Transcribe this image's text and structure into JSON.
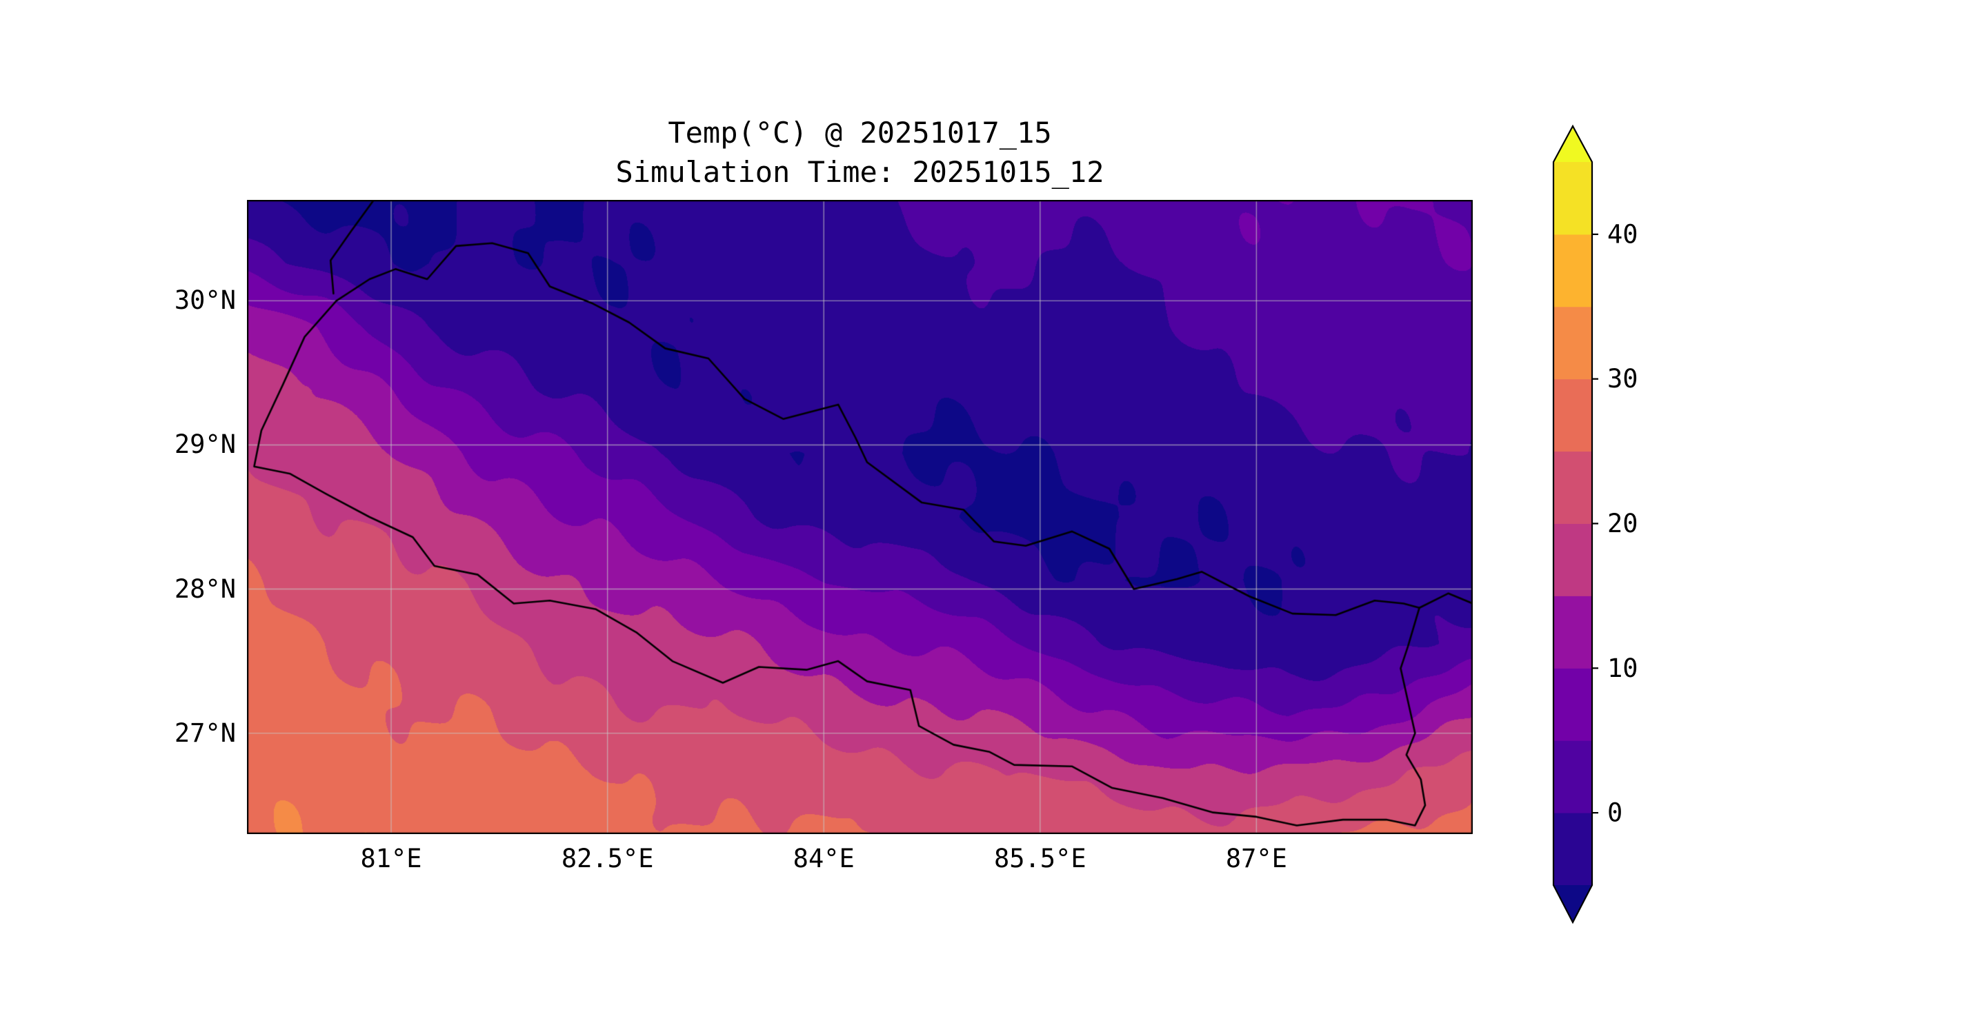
{
  "figure": {
    "title_line1": "Temp(°C) @ 20251017_15",
    "title_line2": "Simulation Time: 20251015_12"
  },
  "axes": {
    "x_ticks": [
      {
        "value": 81,
        "label": "81°E"
      },
      {
        "value": 82.5,
        "label": "82.5°E"
      },
      {
        "value": 84,
        "label": "84°E"
      },
      {
        "value": 85.5,
        "label": "85.5°E"
      },
      {
        "value": 87,
        "label": "87°E"
      }
    ],
    "y_ticks": [
      {
        "value": 30,
        "label": "30°N"
      },
      {
        "value": 29,
        "label": "29°N"
      },
      {
        "value": 28,
        "label": "28°N"
      },
      {
        "value": 27,
        "label": "27°N"
      }
    ],
    "gridline_color": "#c8c8c8",
    "frame_color": "#000000"
  },
  "colorbar": {
    "ticks": [
      {
        "value": 0,
        "label": "0"
      },
      {
        "value": 10,
        "label": "10"
      },
      {
        "value": 20,
        "label": "20"
      },
      {
        "value": 30,
        "label": "30"
      },
      {
        "value": 40,
        "label": "40"
      }
    ],
    "levels": [
      -5,
      0,
      5,
      10,
      15,
      20,
      25,
      30,
      35,
      40,
      45
    ],
    "band_colors": [
      "#2a0593",
      "#5002a1",
      "#7201a8",
      "#9511a1",
      "#bf3983",
      "#d24f71",
      "#e96d57",
      "#f58b47",
      "#fdb32f",
      "#f5e125"
    ],
    "under_color": "#0d0887",
    "over_color": "#f0f921",
    "outline_color": "#000000"
  },
  "chart_data": {
    "type": "heatmap",
    "title": "Temp(°C) @ 20251017_15",
    "subtitle": "Simulation Time: 20251015_12",
    "variable": "Temperature",
    "units": "°C",
    "colormap": "plasma",
    "levels": [
      -5,
      0,
      5,
      10,
      15,
      20,
      25,
      30,
      35,
      40,
      45
    ],
    "extent": {
      "lon_min": 80.0,
      "lon_max": 88.5,
      "lat_min": 26.3,
      "lat_max": 30.7
    },
    "xlabel": "",
    "ylabel": "",
    "grid_lons": [
      80.0,
      80.425,
      80.85,
      81.275,
      81.7,
      82.125,
      82.55,
      82.975,
      83.4,
      83.825,
      84.25,
      84.675,
      85.1,
      85.525,
      85.95,
      86.375,
      86.8,
      87.225,
      87.65,
      88.075,
      88.5
    ],
    "grid_lats": [
      30.7,
      30.26,
      29.82,
      29.38,
      28.94,
      28.5,
      28.06,
      27.62,
      27.18,
      26.74,
      26.3
    ],
    "values": [
      [
        -5,
        -6,
        -6,
        -6,
        -5,
        -5,
        -4,
        -4,
        -3,
        -2,
        -1,
        1,
        2,
        2,
        2,
        3,
        4,
        5,
        5,
        5,
        4
      ],
      [
        2,
        -1,
        -3,
        -5,
        -5,
        -5,
        -4,
        -4,
        -3,
        -2,
        -2,
        -1,
        0,
        0,
        0,
        1,
        3,
        4,
        4,
        4,
        4
      ],
      [
        14,
        10,
        5,
        0,
        -3,
        -4,
        -4,
        -4,
        -3,
        -3,
        -3,
        -2,
        -2,
        -2,
        -1,
        0,
        2,
        3,
        3,
        3,
        3
      ],
      [
        17,
        15,
        11,
        7,
        3,
        -1,
        -3,
        -4,
        -4,
        -4,
        -4,
        -4,
        -3,
        -3,
        -3,
        -2,
        -1,
        1,
        2,
        2,
        2
      ],
      [
        20,
        18,
        16,
        13,
        9,
        6,
        2,
        -1,
        -3,
        -5,
        -5,
        -5,
        -5,
        -5,
        -4,
        -4,
        -3,
        -2,
        -1,
        0,
        1
      ],
      [
        23,
        21,
        19,
        17,
        14,
        11,
        8,
        5,
        2,
        -1,
        -3,
        -4,
        -5,
        -6,
        -6,
        -5,
        -4,
        -3,
        -3,
        -2,
        -1
      ],
      [
        25,
        24,
        22,
        20,
        18,
        16,
        13,
        11,
        9,
        7,
        4,
        2,
        -1,
        -3,
        -5,
        -6,
        -5,
        -4,
        -4,
        -3,
        -2
      ],
      [
        27,
        26,
        25,
        23,
        21,
        19,
        18,
        16,
        15,
        13,
        11,
        9,
        7,
        4,
        1,
        -2,
        -4,
        -4,
        -3,
        -1,
        1
      ],
      [
        28,
        27,
        26,
        25,
        24,
        22,
        21,
        20,
        19,
        18,
        17,
        15,
        14,
        12,
        10,
        7,
        5,
        4,
        6,
        9,
        13
      ],
      [
        29,
        28,
        28,
        27,
        26,
        25,
        25,
        24,
        23,
        22,
        22,
        21,
        20,
        19,
        18,
        16,
        15,
        15,
        17,
        20,
        23
      ],
      [
        30,
        29,
        29,
        28,
        28,
        27,
        27,
        26,
        26,
        25,
        25,
        25,
        24,
        24,
        23,
        23,
        22,
        23,
        25,
        27,
        28
      ]
    ],
    "borders": {
      "nepal": [
        [
          80.05,
          28.85
        ],
        [
          80.1,
          29.1
        ],
        [
          80.25,
          29.42
        ],
        [
          80.4,
          29.75
        ],
        [
          80.62,
          30.0
        ],
        [
          80.85,
          30.15
        ],
        [
          81.03,
          30.22
        ],
        [
          81.25,
          30.15
        ],
        [
          81.45,
          30.38
        ],
        [
          81.7,
          30.4
        ],
        [
          81.95,
          30.33
        ],
        [
          82.1,
          30.1
        ],
        [
          82.4,
          29.98
        ],
        [
          82.65,
          29.85
        ],
        [
          82.9,
          29.67
        ],
        [
          83.2,
          29.6
        ],
        [
          83.45,
          29.32
        ],
        [
          83.72,
          29.18
        ],
        [
          84.1,
          29.28
        ],
        [
          84.22,
          29.05
        ],
        [
          84.3,
          28.88
        ],
        [
          84.68,
          28.6
        ],
        [
          84.97,
          28.55
        ],
        [
          85.18,
          28.33
        ],
        [
          85.4,
          28.3
        ],
        [
          85.72,
          28.4
        ],
        [
          85.98,
          28.28
        ],
        [
          86.15,
          28.0
        ],
        [
          86.45,
          28.07
        ],
        [
          86.62,
          28.12
        ],
        [
          86.95,
          27.95
        ],
        [
          87.25,
          27.83
        ],
        [
          87.55,
          27.82
        ],
        [
          87.82,
          27.92
        ],
        [
          88.02,
          27.9
        ],
        [
          88.13,
          27.87
        ],
        [
          88.05,
          27.6
        ],
        [
          88.0,
          27.45
        ],
        [
          88.06,
          27.18
        ],
        [
          88.1,
          27.0
        ],
        [
          88.04,
          26.85
        ],
        [
          88.14,
          26.68
        ],
        [
          88.17,
          26.5
        ],
        [
          88.1,
          26.36
        ],
        [
          87.9,
          26.4
        ],
        [
          87.6,
          26.4
        ],
        [
          87.28,
          26.36
        ],
        [
          87.0,
          26.42
        ],
        [
          86.7,
          26.45
        ],
        [
          86.35,
          26.55
        ],
        [
          86.0,
          26.62
        ],
        [
          85.72,
          26.77
        ],
        [
          85.32,
          26.78
        ],
        [
          85.15,
          26.87
        ],
        [
          84.9,
          26.92
        ],
        [
          84.66,
          27.05
        ],
        [
          84.6,
          27.3
        ],
        [
          84.3,
          27.36
        ],
        [
          84.1,
          27.5
        ],
        [
          83.88,
          27.44
        ],
        [
          83.55,
          27.46
        ],
        [
          83.3,
          27.35
        ],
        [
          82.95,
          27.5
        ],
        [
          82.7,
          27.7
        ],
        [
          82.42,
          27.86
        ],
        [
          82.1,
          27.92
        ],
        [
          81.85,
          27.9
        ],
        [
          81.6,
          28.1
        ],
        [
          81.3,
          28.16
        ],
        [
          81.15,
          28.36
        ],
        [
          80.85,
          28.5
        ],
        [
          80.55,
          28.66
        ],
        [
          80.3,
          28.8
        ],
        [
          80.05,
          28.85
        ]
      ],
      "extra_lines": [
        [
          [
            80.88,
            30.7
          ],
          [
            80.72,
            30.48
          ],
          [
            80.58,
            30.28
          ],
          [
            80.6,
            30.05
          ]
        ],
        [
          [
            88.13,
            27.87
          ],
          [
            88.33,
            27.97
          ],
          [
            88.5,
            27.9
          ]
        ]
      ],
      "border_color": "#000000"
    },
    "legend_position": "right-colorbar",
    "grid": true
  }
}
